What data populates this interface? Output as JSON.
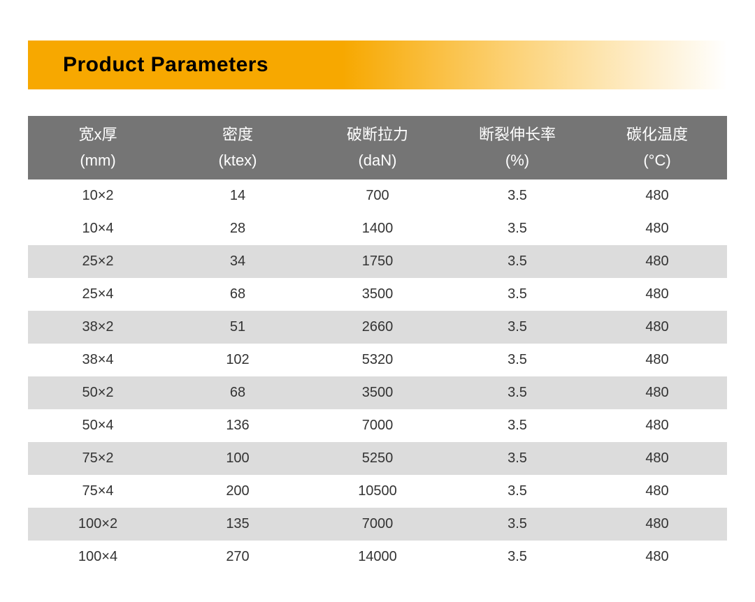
{
  "title": "Product Parameters",
  "table": {
    "type": "table",
    "header_bg_color": "#757575",
    "header_text_color": "#ffffff",
    "row_colors": [
      "#ffffff",
      "#dcdcdc"
    ],
    "cell_text_color": "#333333",
    "header_fontsize": 22,
    "cell_fontsize": 20,
    "columns": [
      {
        "label": "宽x厚",
        "unit": "(mm)"
      },
      {
        "label": "密度",
        "unit": "(ktex)"
      },
      {
        "label": "破断拉力",
        "unit": "(daN)"
      },
      {
        "label": "断裂伸长率",
        "unit": "(%)"
      },
      {
        "label": "碳化温度",
        "unit": "(°C)"
      }
    ],
    "rows": [
      [
        "10×2",
        "14",
        "700",
        "3.5",
        "480"
      ],
      [
        "10×4",
        "28",
        "1400",
        "3.5",
        "480"
      ],
      [
        "25×2",
        "34",
        "1750",
        "3.5",
        "480"
      ],
      [
        "25×4",
        "68",
        "3500",
        "3.5",
        "480"
      ],
      [
        "38×2",
        "51",
        "2660",
        "3.5",
        "480"
      ],
      [
        "38×4",
        "102",
        "5320",
        "3.5",
        "480"
      ],
      [
        "50×2",
        "68",
        "3500",
        "3.5",
        "480"
      ],
      [
        "50×4",
        "136",
        "7000",
        "3.5",
        "480"
      ],
      [
        "75×2",
        "100",
        "5250",
        "3.5",
        "480"
      ],
      [
        "75×4",
        "200",
        "10500",
        "3.5",
        "480"
      ],
      [
        "100×2",
        "135",
        "7000",
        "3.5",
        "480"
      ],
      [
        "100×4",
        "270",
        "14000",
        "3.5",
        "480"
      ]
    ]
  },
  "banner": {
    "gradient_start": "#f7a800",
    "gradient_mid": "#fcd37a",
    "gradient_end": "#ffffff",
    "title_color": "#000000",
    "title_fontsize": 30
  }
}
